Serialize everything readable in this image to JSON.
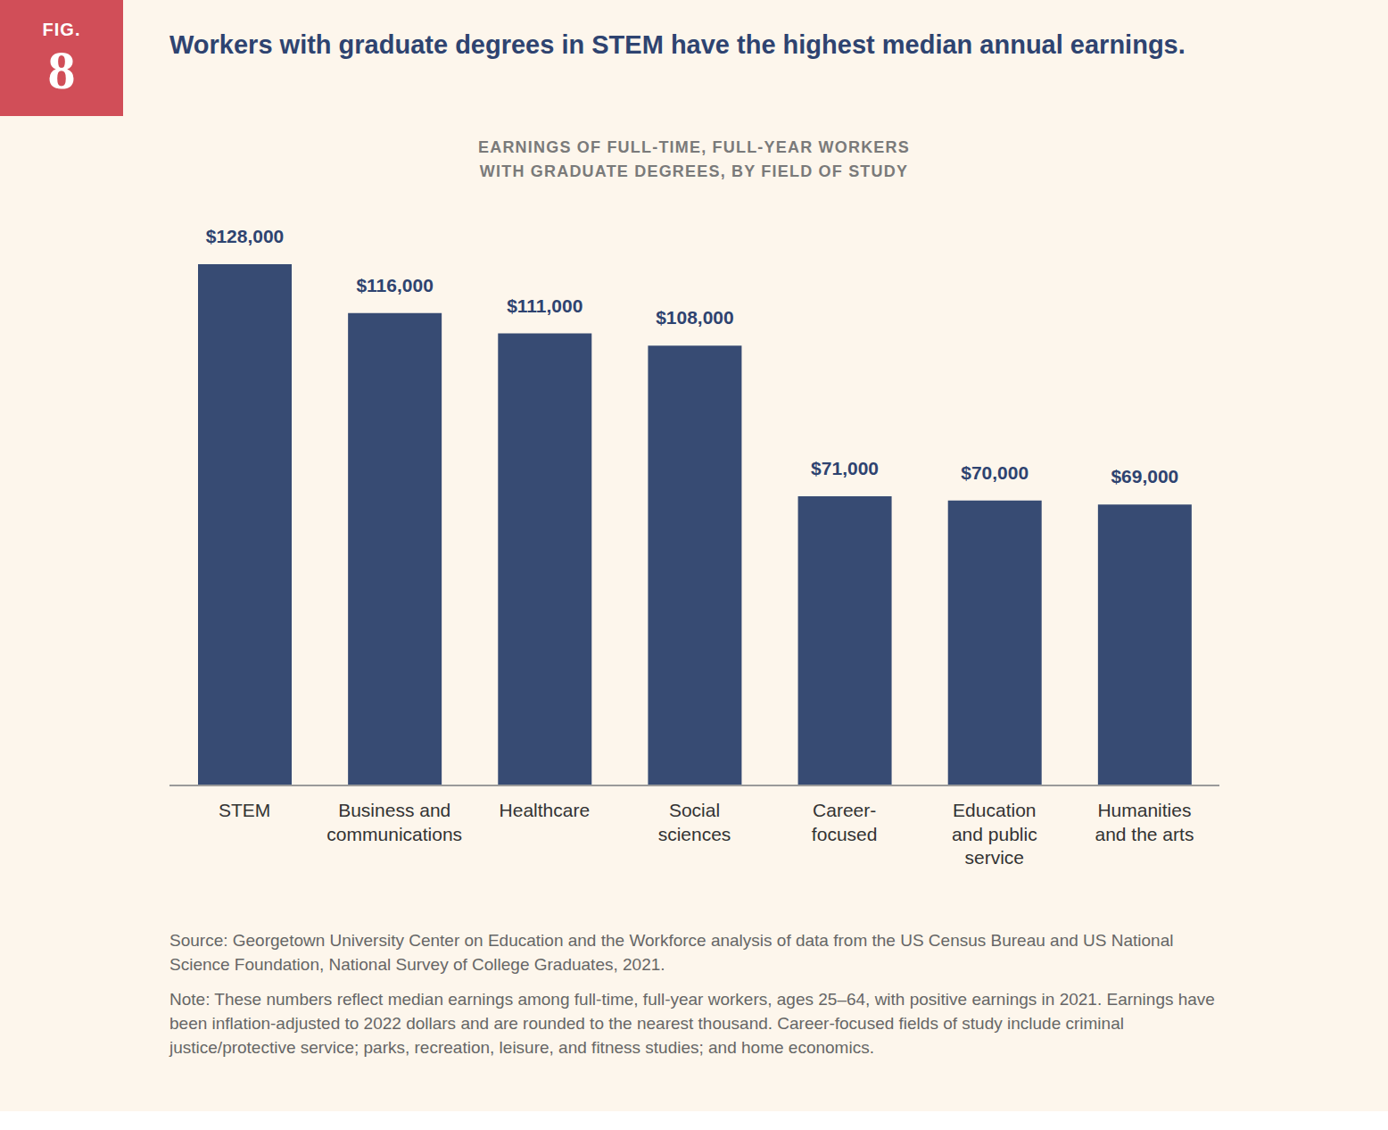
{
  "figure_label": "FIG.",
  "figure_number": "8",
  "chart_data": {
    "type": "bar",
    "title": "Workers with graduate degrees in STEM have the highest median annual earnings.",
    "subtitle": "EARNINGS OF FULL-TIME, FULL-YEAR WORKERS WITH GRADUATE DEGREES, BY FIELD OF STUDY",
    "categories": [
      "STEM",
      "Business and communications",
      "Healthcare",
      "Social sciences",
      "Career-focused",
      "Education and public service",
      "Humanities and the arts"
    ],
    "values": [
      128000,
      116000,
      111000,
      108000,
      71000,
      70000,
      69000
    ],
    "value_labels": [
      "$128,000",
      "$116,000",
      "$111,000",
      "$108,000",
      "$71,000",
      "$70,000",
      "$69,000"
    ],
    "color": "#374b73",
    "ylim": [
      0,
      128000
    ],
    "grid": false,
    "data_labels": true,
    "tick_labels": "x"
  },
  "source": "Source: Georgetown University Center on Education and the Workforce analysis of data from the US Census Bureau and US National Science Foundation, National Survey of College Graduates, 2021.",
  "note": "Note: These numbers reflect median earnings among full-time, full-year workers, ages 25–64, with positive earnings in 2021. Earnings have been inflation-adjusted to 2022 dollars and are rounded to the nearest thousand. Career-focused fields of study include criminal justice/protective service; parks, recreation, leisure, and fitness studies; and home economics."
}
